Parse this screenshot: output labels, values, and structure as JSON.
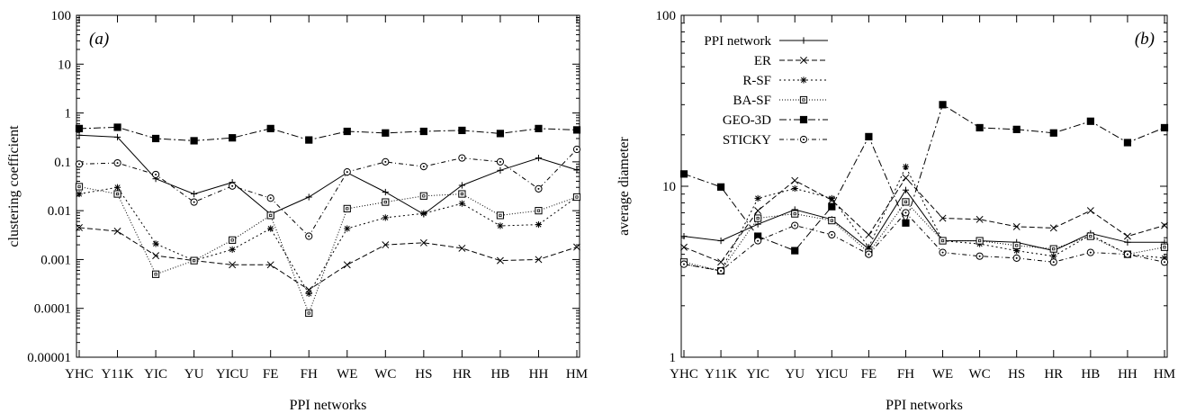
{
  "chart_data": [
    {
      "type": "line",
      "panel_label": "(a)",
      "xlabel": "PPI networks",
      "ylabel": "clustering coefficient",
      "y_scale": "log",
      "ylim": [
        1e-05,
        100
      ],
      "y_ticks": [
        1e-05,
        0.0001,
        0.001,
        0.01,
        0.1,
        1,
        10,
        100
      ],
      "y_tick_labels": [
        "0.00001",
        "0.0001",
        "0.001",
        "0.01",
        "0.1",
        "1",
        "10",
        "100"
      ],
      "categories": [
        "YHC",
        "Y11K",
        "YIC",
        "YU",
        "YICU",
        "FE",
        "FH",
        "WE",
        "WC",
        "HS",
        "HR",
        "HB",
        "HH",
        "HM"
      ],
      "grid": false,
      "series": [
        {
          "key": "ppi",
          "values": [
            0.35,
            0.32,
            0.045,
            0.022,
            0.038,
            0.0085,
            0.019,
            0.06,
            0.024,
            0.0085,
            0.033,
            0.067,
            0.12,
            0.068
          ]
        },
        {
          "key": "er",
          "values": [
            0.0045,
            0.0038,
            0.0012,
            0.00095,
            0.00078,
            0.00078,
            0.00024,
            0.00078,
            0.002,
            0.0022,
            0.0017,
            0.00095,
            0.001,
            0.0018
          ]
        },
        {
          "key": "rsf",
          "values": [
            0.022,
            0.03,
            0.0021,
            0.00095,
            0.0016,
            0.0043,
            0.0002,
            0.0043,
            0.0072,
            0.0088,
            0.014,
            0.0049,
            0.0052,
            0.019
          ]
        },
        {
          "key": "basf",
          "values": [
            0.031,
            0.022,
            0.0005,
            0.00095,
            0.0025,
            0.008,
            8e-05,
            0.011,
            0.015,
            0.02,
            0.022,
            0.008,
            0.01,
            0.019
          ]
        },
        {
          "key": "geo",
          "values": [
            0.48,
            0.51,
            0.3,
            0.27,
            0.31,
            0.48,
            0.28,
            0.42,
            0.39,
            0.42,
            0.44,
            0.38,
            0.48,
            0.45
          ]
        },
        {
          "key": "sticky",
          "values": [
            0.09,
            0.095,
            0.055,
            0.015,
            0.032,
            0.018,
            0.003,
            0.062,
            0.1,
            0.08,
            0.12,
            0.1,
            0.028,
            0.18
          ]
        }
      ]
    },
    {
      "type": "line",
      "panel_label": "(b)",
      "xlabel": "PPI networks",
      "ylabel": "average diameter",
      "y_scale": "log",
      "ylim": [
        1,
        100
      ],
      "y_ticks": [
        1,
        10,
        100
      ],
      "y_tick_labels": [
        "1",
        "10",
        "100"
      ],
      "categories": [
        "YHC",
        "Y11K",
        "YIC",
        "YU",
        "YICU",
        "FE",
        "FH",
        "WE",
        "WC",
        "HS",
        "HR",
        "HB",
        "HH",
        "HM"
      ],
      "grid": false,
      "legend_position": "top-left",
      "series": [
        {
          "key": "ppi",
          "name": "PPI network",
          "values": [
            5.1,
            4.8,
            6.0,
            7.3,
            6.4,
            4.3,
            9.5,
            4.8,
            4.8,
            4.7,
            4.2,
            5.3,
            4.7,
            4.7
          ]
        },
        {
          "key": "er",
          "name": "ER",
          "values": [
            4.4,
            3.6,
            7.2,
            10.8,
            8.3,
            5.2,
            11.2,
            6.5,
            6.4,
            5.8,
            5.7,
            7.2,
            5.1,
            5.9
          ]
        },
        {
          "key": "rsf",
          "name": "R-SF",
          "values": [
            3.5,
            3.2,
            8.5,
            9.7,
            8.5,
            4.4,
            13.0,
            4.8,
            4.6,
            4.2,
            3.9,
            5.2,
            4.0,
            3.8
          ]
        },
        {
          "key": "basf",
          "name": "BA-SF",
          "values": [
            3.6,
            3.2,
            6.5,
            6.9,
            6.3,
            4.1,
            8.1,
            4.8,
            4.8,
            4.5,
            4.3,
            5.1,
            4.0,
            4.4
          ]
        },
        {
          "key": "geo",
          "name": "GEO-3D",
          "values": [
            11.8,
            9.9,
            5.1,
            4.2,
            7.6,
            19.5,
            6.1,
            30.0,
            22.0,
            21.5,
            20.5,
            24.0,
            18.0,
            22.0
          ]
        },
        {
          "key": "sticky",
          "name": "STICKY",
          "values": [
            3.5,
            3.2,
            4.8,
            5.9,
            5.2,
            4.0,
            7.0,
            4.1,
            3.9,
            3.8,
            3.6,
            4.1,
            4.0,
            3.6
          ]
        }
      ]
    }
  ]
}
